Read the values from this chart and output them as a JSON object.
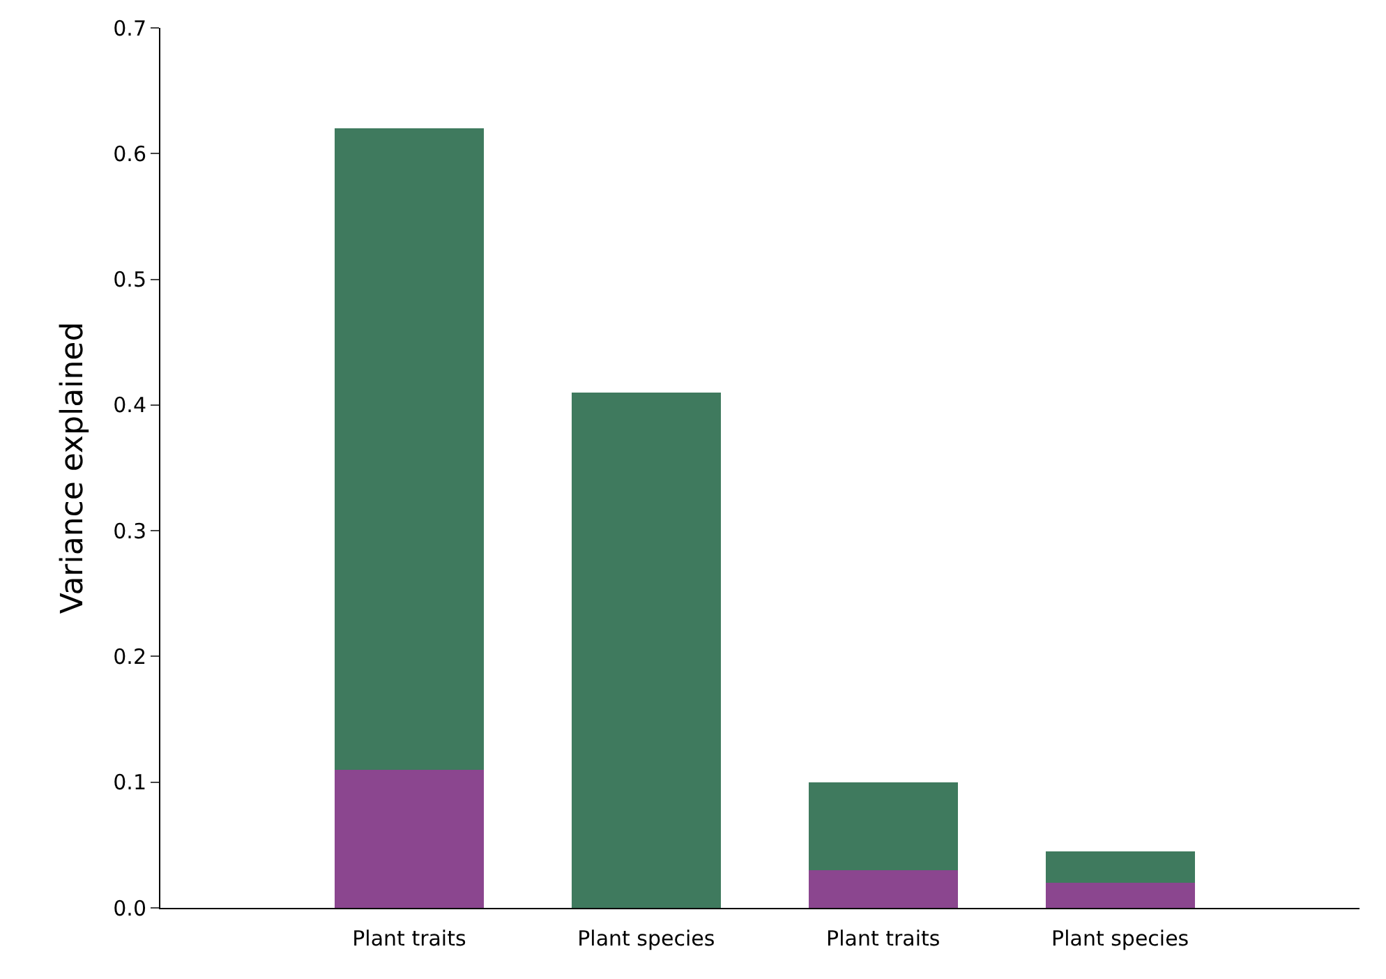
{
  "chart_data": {
    "type": "bar",
    "ylabel": "Variance explained",
    "stacked": true,
    "categories": [
      "Plant traits",
      "Plant species",
      "Plant traits",
      "Plant species"
    ],
    "series": [
      {
        "color": "#8b468f",
        "values": [
          0.11,
          0.0,
          0.03,
          0.02
        ]
      },
      {
        "color": "#3f7a5e",
        "values": [
          0.51,
          0.41,
          0.07,
          0.025
        ]
      }
    ],
    "ylim": [
      0,
      0.7
    ],
    "yticks": [
      {
        "value": 0,
        "label": "0.0"
      },
      0.1,
      0.2,
      0.3,
      0.4,
      0.5,
      0.6,
      0.7
    ]
  }
}
